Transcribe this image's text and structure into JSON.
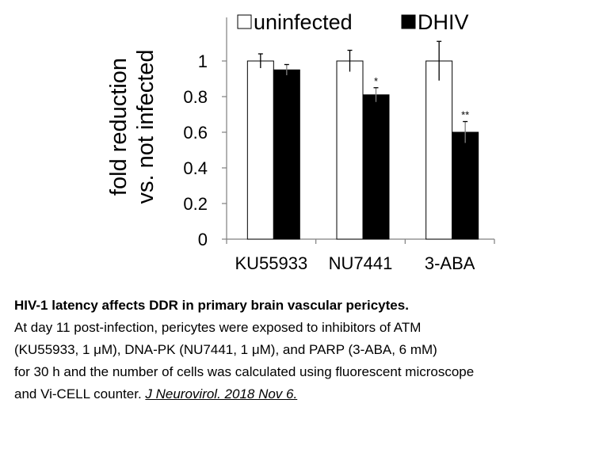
{
  "chart_data": {
    "type": "bar",
    "categories": [
      "KU55933",
      "NU7441",
      "3-ABA"
    ],
    "series": [
      {
        "name": "uninfected",
        "values": [
          1.0,
          1.0,
          1.0
        ],
        "errors": [
          0.04,
          0.06,
          0.11
        ],
        "color": "#ffffff"
      },
      {
        "name": "DHIV",
        "values": [
          0.95,
          0.81,
          0.6
        ],
        "errors": [
          0.03,
          0.04,
          0.06
        ],
        "color": "#000000"
      }
    ],
    "annotations": [
      "",
      "*",
      "**"
    ],
    "ylabel_line1": "fold reduction",
    "ylabel_line2": "vs. not infected",
    "ylim": [
      0,
      1
    ],
    "yticks": [
      "0",
      "0.2",
      "0.4",
      "0.6",
      "0.8",
      "1"
    ],
    "grid": false,
    "legend_position": "top"
  },
  "caption": {
    "title": "HIV-1 latency affects DDR in primary brain vascular pericytes.",
    "lines": [
      "At day 11 post-infection, pericytes were exposed to inhibitors of ATM",
      "(KU55933, 1 μM), DNA-PK (NU7441, 1 μM), and PARP (3-ABA, 6 mM)",
      "for 30 h and the number of cells was calculated using fluorescent microscope",
      "and Vi-CELL counter. "
    ],
    "citation": "J Neurovirol. 2018 Nov 6."
  }
}
